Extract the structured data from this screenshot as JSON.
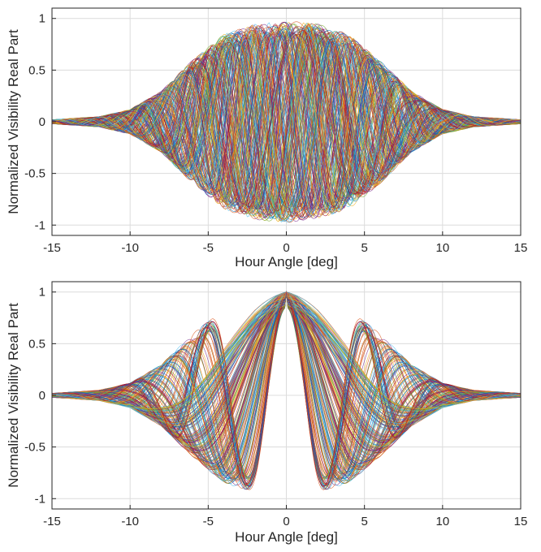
{
  "chart_data": [
    {
      "type": "line",
      "title": "",
      "xlabel": "Hour Angle [deg]",
      "ylabel": "Normalized Visibility Real Part",
      "xlim": [
        -15,
        15
      ],
      "ylim": [
        -1.1,
        1.1
      ],
      "xticks": [
        -15,
        -10,
        -5,
        0,
        5,
        10,
        15
      ],
      "yticks": [
        -1,
        -0.5,
        0,
        0.5,
        1
      ],
      "xtick_labels": [
        "-15",
        "-10",
        "-5",
        "0",
        "5",
        "10",
        "15"
      ],
      "ytick_labels": [
        "-1",
        "-0.5",
        "0",
        "0.5",
        "1"
      ],
      "grid": true,
      "envelope": {
        "x": [
          -15,
          -12,
          -10,
          -8,
          -6,
          -4,
          -2,
          0,
          2,
          4,
          6,
          8,
          10,
          12,
          15
        ],
        "amplitude": [
          0.02,
          0.05,
          0.12,
          0.3,
          0.6,
          0.85,
          0.95,
          0.98,
          0.95,
          0.85,
          0.6,
          0.3,
          0.12,
          0.05,
          0.02
        ]
      },
      "oscillation_period_range_deg": [
        2.5,
        9
      ],
      "series_count": 200
    },
    {
      "type": "line",
      "title": "",
      "xlabel": "Hour Angle [deg]",
      "ylabel": "Normalized Visibility Real Part",
      "xlim": [
        -15,
        15
      ],
      "ylim": [
        -1.1,
        1.1
      ],
      "xticks": [
        -15,
        -10,
        -5,
        0,
        5,
        10,
        15
      ],
      "yticks": [
        -1,
        -0.5,
        0,
        0.5,
        1
      ],
      "xtick_labels": [
        "-15",
        "-10",
        "-5",
        "0",
        "5",
        "10",
        "15"
      ],
      "ytick_labels": [
        "-1",
        "-0.5",
        "0",
        "0.5",
        "1"
      ],
      "grid": true,
      "envelope": {
        "x": [
          -15,
          -12,
          -10,
          -8,
          -6,
          -4,
          -2,
          0,
          2,
          4,
          6,
          8,
          10,
          12,
          15
        ],
        "amplitude": [
          0.02,
          0.05,
          0.12,
          0.3,
          0.6,
          0.85,
          0.95,
          1.0,
          0.95,
          0.85,
          0.6,
          0.3,
          0.12,
          0.05,
          0.02
        ]
      },
      "oscillation_period_range_deg": [
        4.8,
        26
      ],
      "peak_at_zero": 1.0,
      "series_count": 200
    }
  ],
  "colors": {
    "series_palette": [
      "#0072BD",
      "#D95319",
      "#EDB120",
      "#7E2F8E",
      "#77AC30",
      "#4DBEEE",
      "#A2142F"
    ],
    "axis": "#262626",
    "grid": "#dcdcdc"
  }
}
